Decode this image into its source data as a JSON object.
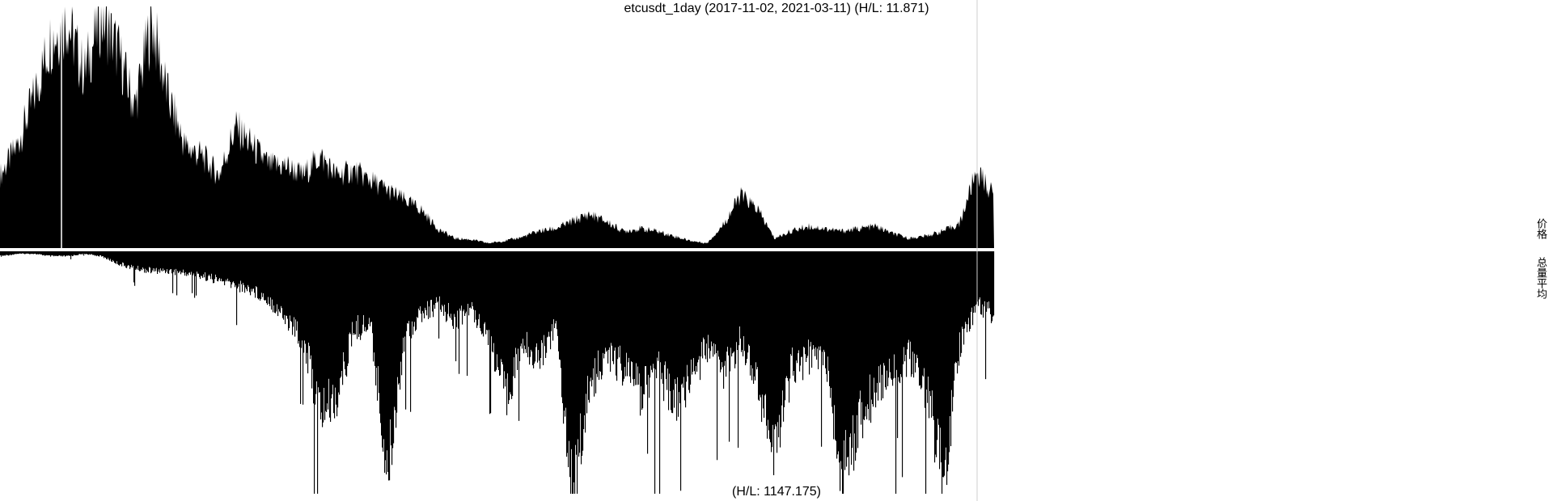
{
  "title": "etcusdt_1day (2017-11-02, 2021-03-11) (H/L: 11.871)",
  "footer": "(H/L: 1147.175)",
  "side_labels": {
    "price": "价格",
    "volume": "总量平均"
  },
  "colors": {
    "bars": "#000000",
    "divider": "#cfcfcf",
    "background": "#ffffff"
  },
  "chart_data": [
    {
      "type": "area",
      "panel": "price",
      "title": "etcusdt_1day (2017-11-02, 2021-03-11) (H/L: 11.871)",
      "x_start": "2017-11-02",
      "x_end": "2021-03-11",
      "hl_ratio": 11.871,
      "sample_count": 60,
      "values": [
        0.3,
        0.42,
        0.62,
        0.86,
        0.94,
        0.72,
        0.96,
        0.82,
        0.58,
        0.94,
        0.62,
        0.42,
        0.38,
        0.3,
        0.5,
        0.42,
        0.34,
        0.34,
        0.3,
        0.38,
        0.3,
        0.32,
        0.28,
        0.24,
        0.2,
        0.16,
        0.08,
        0.04,
        0.035,
        0.02,
        0.03,
        0.045,
        0.07,
        0.08,
        0.11,
        0.14,
        0.11,
        0.07,
        0.08,
        0.07,
        0.05,
        0.03,
        0.02,
        0.1,
        0.22,
        0.16,
        0.04,
        0.07,
        0.09,
        0.08,
        0.07,
        0.08,
        0.09,
        0.06,
        0.04,
        0.05,
        0.07,
        0.1,
        0.32,
        0.22
      ],
      "grid": false,
      "legend": "none"
    },
    {
      "type": "bar",
      "panel": "volume",
      "hl_ratio": 1147.175,
      "sample_count": 60,
      "values": [
        0.02,
        0.01,
        0.01,
        0.02,
        0.02,
        0.01,
        0.02,
        0.05,
        0.07,
        0.08,
        0.08,
        0.09,
        0.1,
        0.12,
        0.14,
        0.16,
        0.2,
        0.28,
        0.36,
        0.66,
        0.6,
        0.32,
        0.3,
        0.92,
        0.34,
        0.26,
        0.22,
        0.28,
        0.24,
        0.34,
        0.6,
        0.38,
        0.44,
        0.3,
        1.0,
        0.56,
        0.42,
        0.48,
        0.58,
        0.46,
        0.64,
        0.52,
        0.4,
        0.5,
        0.36,
        0.54,
        0.82,
        0.48,
        0.44,
        0.44,
        0.94,
        0.7,
        0.56,
        0.48,
        0.44,
        0.56,
        0.94,
        0.38,
        0.22,
        0.26
      ],
      "grid": false,
      "legend": "none"
    }
  ]
}
